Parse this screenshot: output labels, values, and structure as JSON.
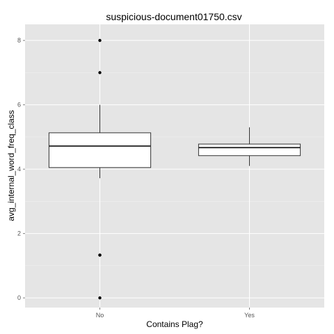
{
  "chart_data": {
    "type": "boxplot",
    "title": "suspicious-document01750.csv",
    "xlabel": "Contains Plag?",
    "ylabel": "avg_internal_word_freq_class",
    "categories": [
      "No",
      "Yes"
    ],
    "y_ticks": [
      0,
      2,
      4,
      6,
      8
    ],
    "y_tick_labels": [
      "0",
      "2",
      "4",
      "6",
      "8"
    ],
    "ylim": [
      -0.3,
      8.5
    ],
    "grid": true,
    "legend": "none",
    "colors": {
      "panel": "#E5E5E5",
      "grid": "#FFFFFF",
      "box_fill": "#FFFFFF",
      "box_stroke": "#333333",
      "outlier": "#000000"
    },
    "boxes": [
      {
        "category": "No",
        "lower_whisker": 3.72,
        "q1": 4.05,
        "median": 4.72,
        "q3": 5.13,
        "upper_whisker": 6.0,
        "outliers": [
          8.0,
          7.0,
          1.33,
          1.33,
          0.0
        ]
      },
      {
        "category": "Yes",
        "lower_whisker": 4.1,
        "q1": 4.42,
        "median": 4.67,
        "q3": 4.78,
        "upper_whisker": 5.3,
        "outliers": []
      }
    ]
  }
}
